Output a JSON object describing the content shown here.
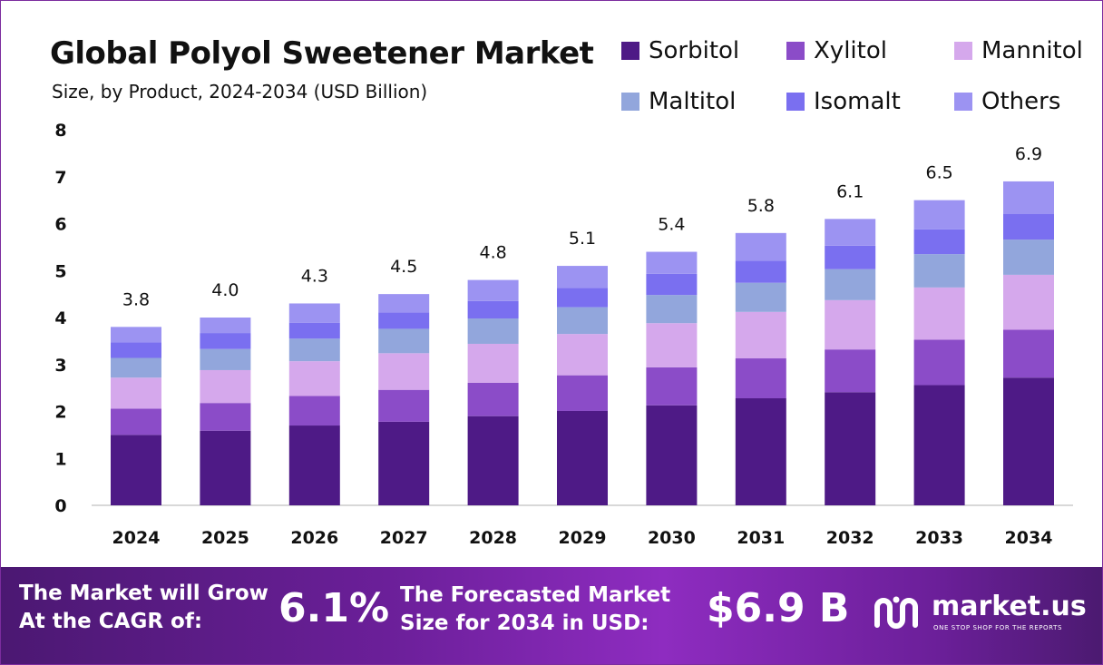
{
  "chart_data": {
    "type": "bar",
    "stacked": true,
    "title": "Global Polyol Sweetener Market",
    "subtitle": "Size, by Product, 2024-2034 (USD Billion)",
    "categories": [
      "2024",
      "2025",
      "2026",
      "2027",
      "2028",
      "2029",
      "2030",
      "2031",
      "2032",
      "2033",
      "2034"
    ],
    "series": [
      {
        "name": "Sorbitol",
        "color": "#4e1a86",
        "values": [
          1.5,
          1.59,
          1.7,
          1.78,
          1.9,
          2.01,
          2.13,
          2.28,
          2.41,
          2.56,
          2.72
        ]
      },
      {
        "name": "Xylitol",
        "color": "#8b4cc8",
        "values": [
          0.56,
          0.59,
          0.63,
          0.68,
          0.71,
          0.76,
          0.81,
          0.85,
          0.91,
          0.97,
          1.02
        ]
      },
      {
        "name": "Mannitol",
        "color": "#d5a8ec",
        "values": [
          0.66,
          0.7,
          0.74,
          0.78,
          0.83,
          0.88,
          0.94,
          0.99,
          1.05,
          1.11,
          1.17
        ]
      },
      {
        "name": "Maltitol",
        "color": "#92a6dc",
        "values": [
          0.42,
          0.45,
          0.48,
          0.52,
          0.54,
          0.57,
          0.6,
          0.62,
          0.66,
          0.71,
          0.75
        ]
      },
      {
        "name": "Isomalt",
        "color": "#7a6ff0",
        "values": [
          0.33,
          0.34,
          0.34,
          0.35,
          0.37,
          0.41,
          0.45,
          0.47,
          0.5,
          0.53,
          0.55
        ]
      },
      {
        "name": "Others",
        "color": "#9c93f2",
        "values": [
          0.33,
          0.33,
          0.41,
          0.39,
          0.45,
          0.47,
          0.47,
          0.59,
          0.57,
          0.62,
          0.69
        ]
      }
    ],
    "totals": [
      "3.8",
      "4.0",
      "4.3",
      "4.5",
      "4.8",
      "5.1",
      "5.4",
      "5.8",
      "6.1",
      "6.5",
      "6.9"
    ],
    "ylim": [
      0,
      8
    ],
    "yticks": [
      "0",
      "1",
      "2",
      "3",
      "4",
      "5",
      "6",
      "7",
      "8"
    ],
    "xlabel": "",
    "ylabel": "",
    "grid": false,
    "legend_position": "top-right"
  },
  "footer": {
    "cagr_line1": "The Market will Grow",
    "cagr_line2": "At the CAGR of:",
    "cagr_value": "6.1%",
    "forecast_line1": "The Forecasted Market",
    "forecast_line2": "Size for 2034 in USD:",
    "forecast_value": "$6.9 B",
    "brand_name": "market.us",
    "brand_tagline": "ONE STOP SHOP FOR THE REPORTS"
  },
  "colors": {
    "frame_border": "#7b2c9e",
    "footer_start": "#4b1872",
    "footer_mid": "#8e2cc0",
    "axis": "#cccccc"
  },
  "icons": {
    "brand_logo": "market-us-logo-icon"
  }
}
